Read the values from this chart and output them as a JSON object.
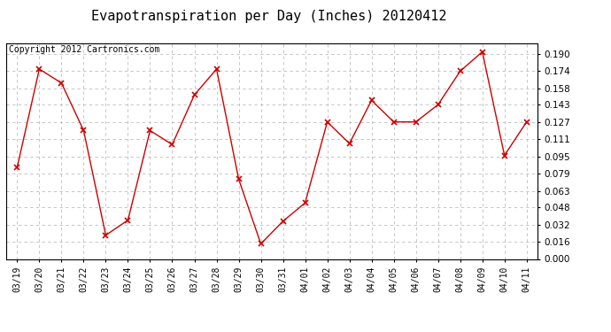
{
  "title": "Evapotranspiration per Day (Inches) 20120412",
  "copyright": "Copyright 2012 Cartronics.com",
  "dates": [
    "03/19",
    "03/20",
    "03/21",
    "03/22",
    "03/23",
    "03/24",
    "03/25",
    "03/26",
    "03/27",
    "03/28",
    "03/29",
    "03/30",
    "03/31",
    "04/01",
    "04/02",
    "04/03",
    "04/04",
    "04/05",
    "04/06",
    "04/07",
    "04/08",
    "04/09",
    "04/10",
    "04/11"
  ],
  "values": [
    0.085,
    0.176,
    0.163,
    0.119,
    0.022,
    0.036,
    0.119,
    0.106,
    0.152,
    0.176,
    0.074,
    0.014,
    0.035,
    0.052,
    0.127,
    0.107,
    0.147,
    0.127,
    0.127,
    0.143,
    0.174,
    0.192,
    0.096,
    0.127
  ],
  "ylim": [
    0.0,
    0.2
  ],
  "yticks": [
    0.0,
    0.016,
    0.032,
    0.048,
    0.063,
    0.079,
    0.095,
    0.111,
    0.127,
    0.143,
    0.158,
    0.174,
    0.19
  ],
  "line_color": "#cc0000",
  "marker": "x",
  "marker_color": "#cc0000",
  "bg_color": "#ffffff",
  "grid_color": "#bbbbbb",
  "title_fontsize": 11,
  "copyright_fontsize": 7,
  "tick_fontsize": 7,
  "ytick_fontsize": 7.5
}
